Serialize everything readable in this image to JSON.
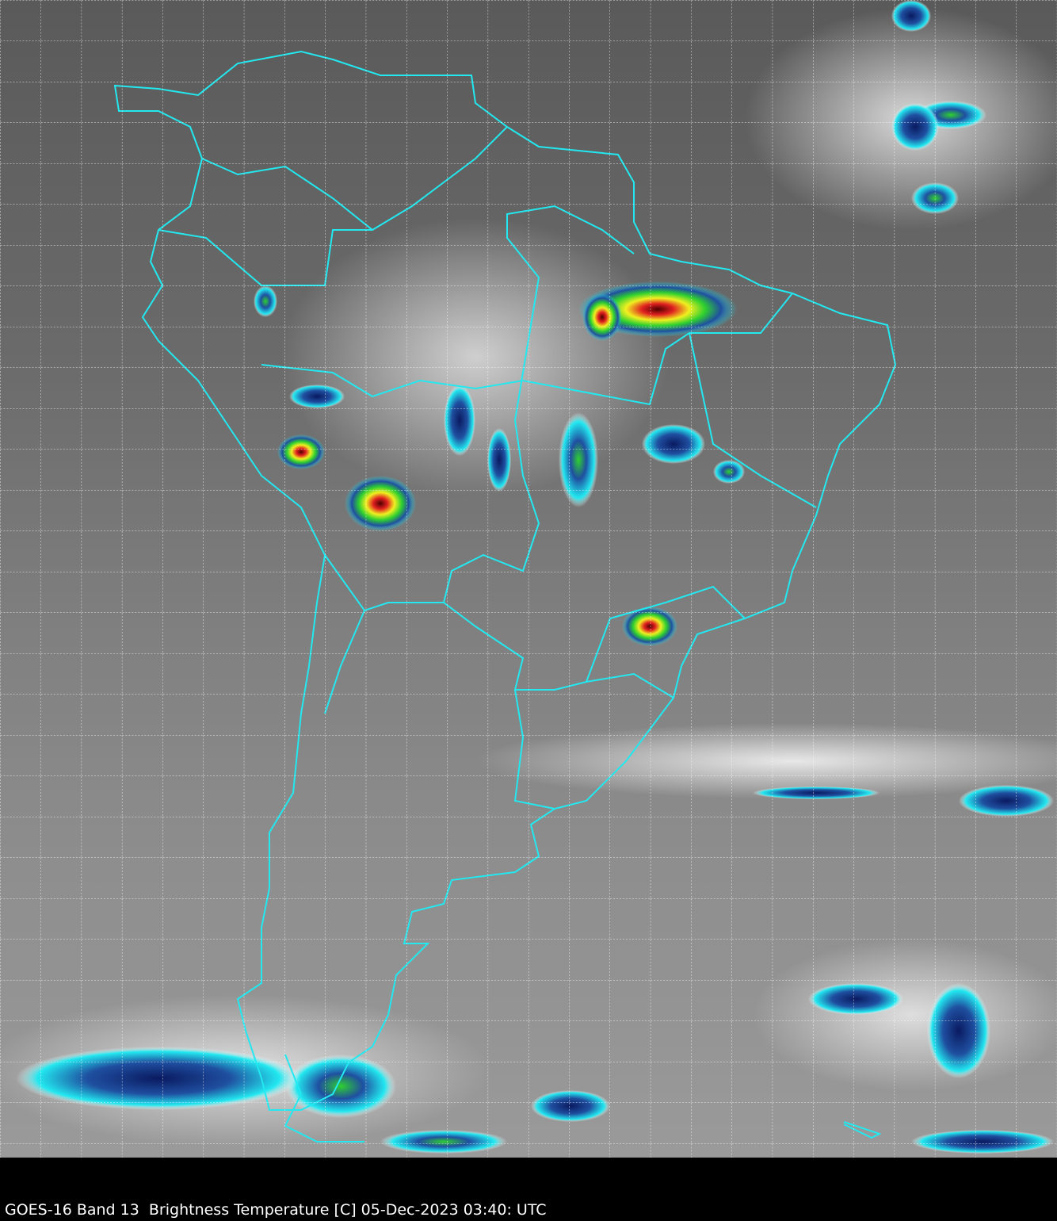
{
  "caption": "GOES-16 Band 13  Brightness Temperature [C] 05-Dec-2023 03:40: UTC",
  "colors": {
    "coastline": "#22e8f0",
    "grid": "#ffffff",
    "cold_cloud_scale": [
      "#ffffff",
      "#22e8f0",
      "#1f4fa0",
      "#0a1a60",
      "#2fd02f",
      "#f0f020",
      "#e02020",
      "#600000"
    ]
  }
}
